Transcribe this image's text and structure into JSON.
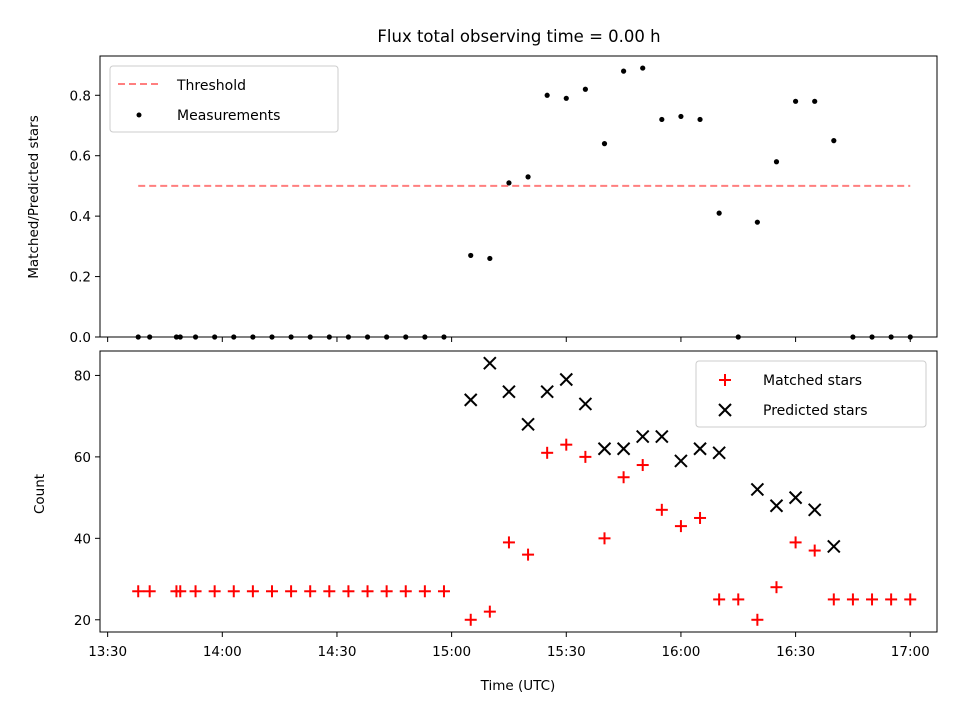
{
  "title": "Flux total observing time = 0.00 h",
  "chart_data": [
    {
      "type": "scatter",
      "ylabel": "Matched/Predicted stars",
      "xlabel": "",
      "xlim": [
        "13:28",
        "17:07"
      ],
      "ylim": [
        0,
        0.93
      ],
      "yticks": [
        0.0,
        0.2,
        0.4,
        0.6,
        0.8
      ],
      "ytick_labels": [
        "0.0",
        "0.2",
        "0.4",
        "0.6",
        "0.8"
      ],
      "legend_position": "top-left",
      "threshold": {
        "name": "Threshold",
        "value": 0.5,
        "x_start": "13:38",
        "x_end": "17:00",
        "color": "#ff7f7f",
        "style": "dashed"
      },
      "series": [
        {
          "name": "Measurements",
          "color": "#000000",
          "marker": "dot",
          "x": [
            "13:38",
            "13:41",
            "13:48",
            "13:49",
            "13:53",
            "13:58",
            "14:03",
            "14:08",
            "14:13",
            "14:18",
            "14:23",
            "14:28",
            "14:33",
            "14:38",
            "14:43",
            "14:48",
            "14:53",
            "14:58",
            "15:05",
            "15:10",
            "15:15",
            "15:20",
            "15:25",
            "15:30",
            "15:35",
            "15:40",
            "15:45",
            "15:50",
            "15:55",
            "16:00",
            "16:05",
            "16:10",
            "16:15",
            "16:20",
            "16:25",
            "16:30",
            "16:35",
            "16:40",
            "16:45",
            "16:50",
            "16:55",
            "17:00"
          ],
          "y": [
            0,
            0,
            0,
            0,
            0,
            0,
            0,
            0,
            0,
            0,
            0,
            0,
            0,
            0,
            0,
            0,
            0,
            0,
            0.27,
            0.26,
            0.51,
            0.53,
            0.8,
            0.79,
            0.82,
            0.64,
            0.88,
            0.89,
            0.72,
            0.73,
            0.72,
            0.41,
            0,
            0.38,
            0.58,
            0.78,
            0.78,
            0.65,
            0,
            0,
            0,
            0
          ]
        }
      ]
    },
    {
      "type": "scatter",
      "ylabel": "Count",
      "xlabel": "Time (UTC)",
      "xlim": [
        "13:28",
        "17:07"
      ],
      "ylim": [
        17,
        86
      ],
      "yticks": [
        20,
        40,
        60,
        80
      ],
      "ytick_labels": [
        "20",
        "40",
        "60",
        "80"
      ],
      "xticks": [
        "13:30",
        "14:00",
        "14:30",
        "15:00",
        "15:30",
        "16:00",
        "16:30",
        "17:00"
      ],
      "xtick_labels": [
        "13:30",
        "14:00",
        "14:30",
        "15:00",
        "15:30",
        "16:00",
        "16:30",
        "17:00"
      ],
      "legend_position": "top-right",
      "series": [
        {
          "name": "Matched stars",
          "color": "#ff0000",
          "marker": "plus",
          "x": [
            "13:38",
            "13:41",
            "13:48",
            "13:49",
            "13:53",
            "13:58",
            "14:03",
            "14:08",
            "14:13",
            "14:18",
            "14:23",
            "14:28",
            "14:33",
            "14:38",
            "14:43",
            "14:48",
            "14:53",
            "14:58",
            "15:05",
            "15:10",
            "15:15",
            "15:20",
            "15:25",
            "15:30",
            "15:35",
            "15:40",
            "15:45",
            "15:50",
            "15:55",
            "16:00",
            "16:05",
            "16:10",
            "16:15",
            "16:20",
            "16:25",
            "16:30",
            "16:35",
            "16:40",
            "16:45",
            "16:50",
            "16:55",
            "17:00"
          ],
          "y": [
            27,
            27,
            27,
            27,
            27,
            27,
            27,
            27,
            27,
            27,
            27,
            27,
            27,
            27,
            27,
            27,
            27,
            27,
            20,
            22,
            39,
            36,
            61,
            63,
            60,
            40,
            55,
            58,
            47,
            43,
            45,
            25,
            25,
            20,
            28,
            39,
            37,
            25,
            25,
            25,
            25,
            25
          ]
        },
        {
          "name": "Predicted stars",
          "color": "#000000",
          "marker": "cross",
          "x": [
            "15:05",
            "15:10",
            "15:15",
            "15:20",
            "15:25",
            "15:30",
            "15:35",
            "15:40",
            "15:45",
            "15:50",
            "15:55",
            "16:00",
            "16:05",
            "16:10",
            "16:20",
            "16:25",
            "16:30",
            "16:35",
            "16:40"
          ],
          "y": [
            74,
            83,
            76,
            68,
            76,
            79,
            73,
            62,
            62,
            65,
            65,
            59,
            62,
            61,
            52,
            48,
            50,
            47,
            38
          ]
        }
      ]
    }
  ]
}
